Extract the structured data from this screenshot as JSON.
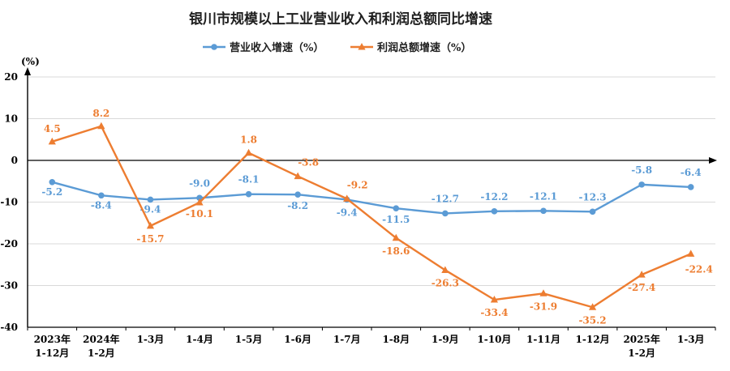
{
  "chart_data": {
    "type": "line",
    "title": "银川市规模以上工业营业收入和利润总额同比增速",
    "ylabel": "(%)",
    "ylim": [
      -40,
      20
    ],
    "yticks": [
      20,
      10,
      0,
      -10,
      -20,
      -30,
      -40
    ],
    "grid": true,
    "legend": "top-center",
    "categories": [
      [
        "2023年",
        "1-12月"
      ],
      [
        "2024年",
        "1-2月"
      ],
      [
        "1-3月"
      ],
      [
        "1-4月"
      ],
      [
        "1-5月"
      ],
      [
        "1-6月"
      ],
      [
        "1-7月"
      ],
      [
        "1-8月"
      ],
      [
        "1-9月"
      ],
      [
        "1-10月"
      ],
      [
        "1-11月"
      ],
      [
        "1-12月"
      ],
      [
        "2025年",
        "1-2月"
      ],
      [
        "1-3月"
      ]
    ],
    "series": [
      {
        "name": "营业收入增速（%）",
        "color": "#5B9BD5",
        "marker": "circle",
        "values": [
          -5.2,
          -8.4,
          -9.4,
          -9.0,
          -8.1,
          -8.2,
          -9.4,
          -11.5,
          -12.7,
          -12.2,
          -12.1,
          -12.3,
          -5.8,
          -6.4
        ],
        "labels": [
          "-5.2",
          "-8.4",
          "-9.4",
          "-9.0",
          "-8.1",
          "-8.2",
          "-9.4",
          "-11.5",
          "-12.7",
          "-12.2",
          "-12.1",
          "-12.3",
          "-5.8",
          "-6.4"
        ]
      },
      {
        "name": "利润总额增速（%）",
        "color": "#ED7D31",
        "marker": "triangle",
        "values": [
          4.5,
          8.2,
          -15.7,
          -10.1,
          1.8,
          -3.8,
          -9.2,
          -18.6,
          -26.3,
          -33.4,
          -31.9,
          -35.2,
          -27.4,
          -22.4
        ],
        "labels": [
          "4.5",
          "8.2",
          "-15.7",
          "-10.1",
          "1.8",
          "-3.8",
          "-9.2",
          "-18.6",
          "-26.3",
          "-33.4",
          "-31.9",
          "-35.2",
          "-27.4",
          "-22.4"
        ]
      }
    ]
  }
}
